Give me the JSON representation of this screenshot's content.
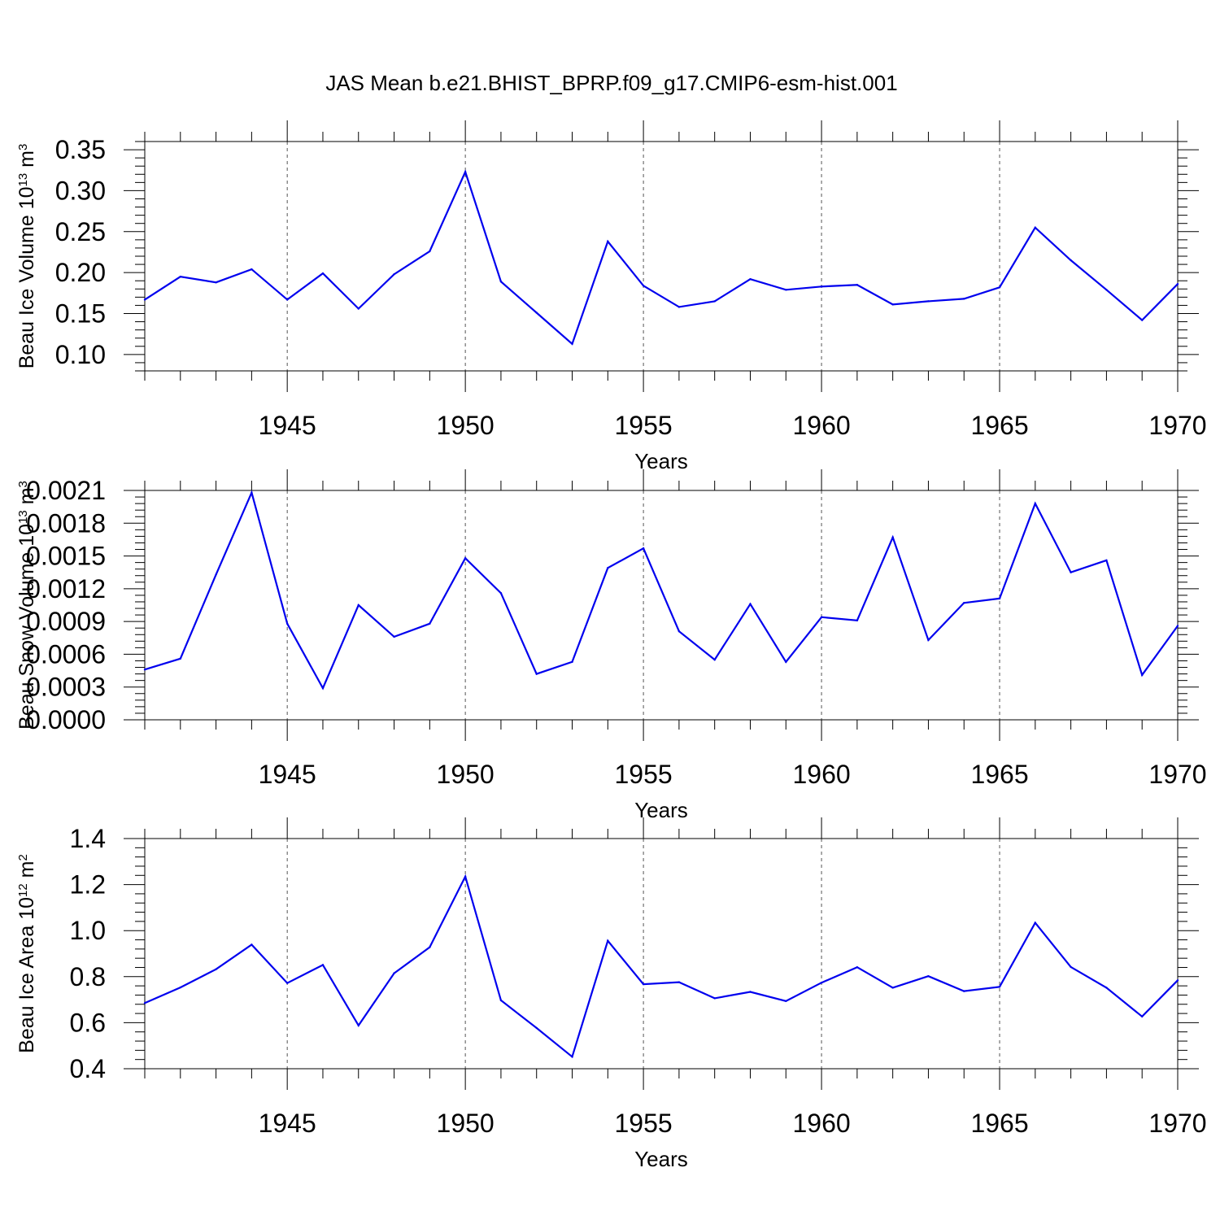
{
  "title": "JAS Mean b.e21.BHIST_BPRP.f09_g17.CMIP6-esm-hist.001",
  "line_color": "#0000ee",
  "chart_data": [
    {
      "type": "line",
      "xlabel": "Years",
      "ylabel": {
        "text": "Beau Ice Volume 10",
        "sup": "13",
        "unit": " m",
        "unit_sup": "3"
      },
      "xlim": [
        1941,
        1970
      ],
      "ylim": [
        0.08,
        0.36
      ],
      "xticks": [
        1945,
        1950,
        1955,
        1960,
        1965,
        1970
      ],
      "yticks": [
        "0.10",
        "0.15",
        "0.20",
        "0.25",
        "0.30",
        "0.35"
      ],
      "grid_x": true,
      "x": [
        1941,
        1942,
        1943,
        1944,
        1945,
        1946,
        1947,
        1948,
        1949,
        1950,
        1951,
        1952,
        1953,
        1954,
        1955,
        1956,
        1957,
        1958,
        1959,
        1960,
        1961,
        1962,
        1963,
        1964,
        1965,
        1966,
        1967,
        1968,
        1969,
        1970
      ],
      "y": [
        0.167,
        0.195,
        0.188,
        0.204,
        0.167,
        0.199,
        0.156,
        0.198,
        0.226,
        0.323,
        0.189,
        0.151,
        0.113,
        0.238,
        0.184,
        0.158,
        0.165,
        0.192,
        0.179,
        0.183,
        0.185,
        0.161,
        0.165,
        0.168,
        0.182,
        0.255,
        0.215,
        0.179,
        0.142,
        0.186
      ]
    },
    {
      "type": "line",
      "xlabel": "Years",
      "ylabel": {
        "text": "Beau Snow Volume 10",
        "sup": "13",
        "unit": " m",
        "unit_sup": "3"
      },
      "xlim": [
        1941,
        1970
      ],
      "ylim": [
        0,
        0.0021
      ],
      "xticks": [
        1945,
        1950,
        1955,
        1960,
        1965,
        1970
      ],
      "yticks": [
        "0.0000",
        "0.0003",
        "0.0006",
        "0.0009",
        "0.0012",
        "0.0015",
        "0.0018",
        "0.0021"
      ],
      "grid_x": true,
      "x": [
        1941,
        1942,
        1943,
        1944,
        1945,
        1946,
        1947,
        1948,
        1949,
        1950,
        1951,
        1952,
        1953,
        1954,
        1955,
        1956,
        1957,
        1958,
        1959,
        1960,
        1961,
        1962,
        1963,
        1964,
        1965,
        1966,
        1967,
        1968,
        1969,
        1970
      ],
      "y": [
        0.00046,
        0.00056,
        0.00133,
        0.00208,
        0.00088,
        0.00029,
        0.00105,
        0.00076,
        0.00088,
        0.00148,
        0.00116,
        0.00042,
        0.00053,
        0.00139,
        0.00157,
        0.00081,
        0.00055,
        0.00106,
        0.00053,
        0.00094,
        0.00091,
        0.00167,
        0.00073,
        0.00107,
        0.00111,
        0.00198,
        0.00135,
        0.00146,
        0.00041,
        0.00086
      ]
    },
    {
      "type": "line",
      "xlabel": "Years",
      "ylabel": {
        "text": "Beau Ice Area 10",
        "sup": "12",
        "unit": " m",
        "unit_sup": "2"
      },
      "xlim": [
        1941,
        1970
      ],
      "ylim": [
        0.4,
        1.4
      ],
      "xticks": [
        1945,
        1950,
        1955,
        1960,
        1965,
        1970
      ],
      "yticks": [
        "0.4",
        "0.6",
        "0.8",
        "1.0",
        "1.2",
        "1.4"
      ],
      "grid_x": true,
      "x": [
        1941,
        1942,
        1943,
        1944,
        1945,
        1946,
        1947,
        1948,
        1949,
        1950,
        1951,
        1952,
        1953,
        1954,
        1955,
        1956,
        1957,
        1958,
        1959,
        1960,
        1961,
        1962,
        1963,
        1964,
        1965,
        1966,
        1967,
        1968,
        1969,
        1970
      ],
      "y": [
        0.685,
        0.753,
        0.832,
        0.939,
        0.772,
        0.851,
        0.588,
        0.815,
        0.928,
        1.235,
        0.697,
        0.577,
        0.452,
        0.956,
        0.767,
        0.776,
        0.706,
        0.734,
        0.694,
        0.774,
        0.841,
        0.752,
        0.802,
        0.737,
        0.756,
        1.034,
        0.842,
        0.752,
        0.627,
        0.784
      ]
    }
  ]
}
